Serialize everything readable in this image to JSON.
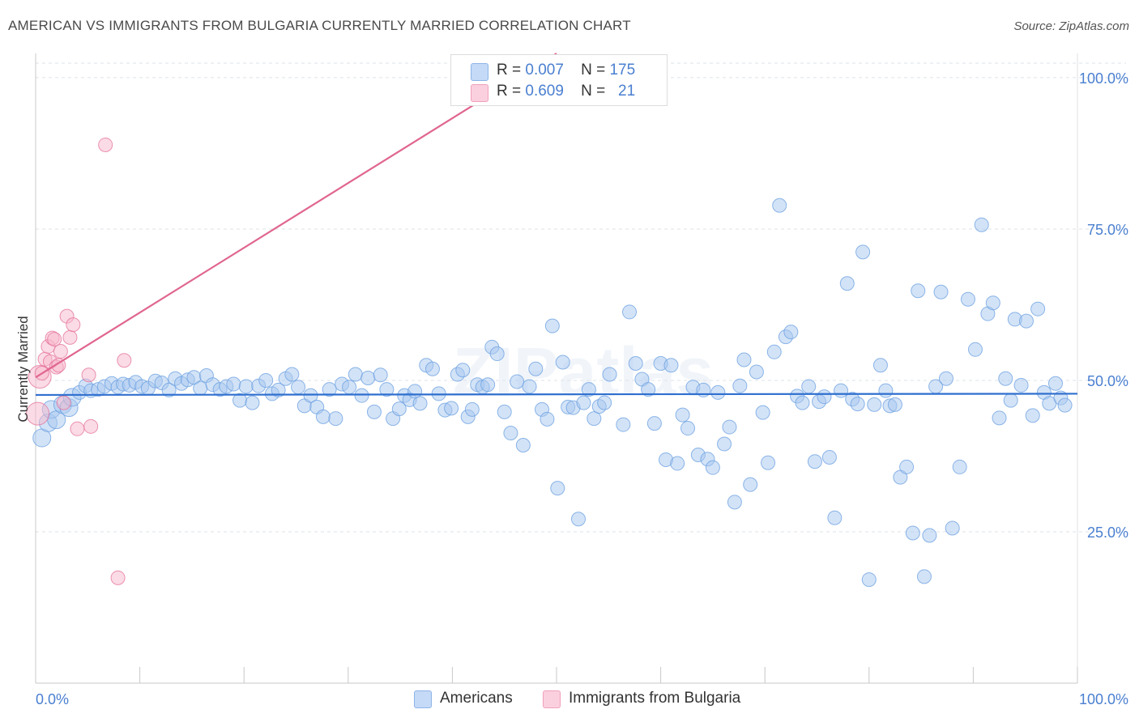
{
  "title": "AMERICAN VS IMMIGRANTS FROM BULGARIA CURRENTLY MARRIED CORRELATION CHART",
  "source": "Source: ZipAtlas.com",
  "watermark": "ZIPatlas",
  "legend": {
    "rows": [
      {
        "r_label": "R =",
        "r_value": "0.007",
        "n_label": "N =",
        "n_value": "175",
        "color": "#a8c8f0"
      },
      {
        "r_label": "R =",
        "r_value": "0.609",
        "n_label": "N =",
        "n_value": "21",
        "color": "#f7b8cc"
      }
    ]
  },
  "bottom_legend": [
    {
      "label": "Americans",
      "color": "#a8c8f0"
    },
    {
      "label": "Immigrants from Bulgaria",
      "color": "#f7b8cc"
    }
  ],
  "chart_data": {
    "type": "scatter",
    "title": "AMERICAN VS IMMIGRANTS FROM BULGARIA CURRENTLY MARRIED CORRELATION CHART",
    "xlabel": "",
    "ylabel": "Currently Married",
    "xlim": [
      0,
      100
    ],
    "ylim": [
      0,
      104
    ],
    "x_tick_labels": [
      "0.0%",
      "100.0%"
    ],
    "y_ticks": [
      25,
      50,
      75,
      100
    ],
    "y_tick_labels": [
      "25.0%",
      "50.0%",
      "75.0%",
      "100.0%"
    ],
    "grid": true,
    "legend_position": "top-center",
    "series": [
      {
        "name": "Americans",
        "color": "#6a9fe0",
        "fill": "#a8c8f0",
        "trend": {
          "x": [
            0,
            100
          ],
          "y": [
            47.6,
            47.8
          ]
        },
        "points": [
          [
            0.6,
            40.5
          ],
          [
            1.2,
            43.0
          ],
          [
            1.5,
            45.2
          ],
          [
            2.0,
            43.5
          ],
          [
            2.6,
            46.0
          ],
          [
            3.2,
            45.5
          ],
          [
            3.5,
            47.2
          ],
          [
            4.2,
            48.0
          ],
          [
            4.8,
            49.1
          ],
          [
            5.3,
            48.3
          ],
          [
            6.0,
            48.5
          ],
          [
            6.6,
            49.0
          ],
          [
            7.3,
            49.5
          ],
          [
            7.9,
            48.9
          ],
          [
            8.4,
            49.4
          ],
          [
            9.0,
            49.2
          ],
          [
            9.6,
            49.7
          ],
          [
            10.2,
            49.0
          ],
          [
            10.8,
            48.7
          ],
          [
            11.5,
            49.9
          ],
          [
            12.1,
            49.6
          ],
          [
            12.8,
            48.4
          ],
          [
            13.4,
            50.3
          ],
          [
            14.0,
            49.5
          ],
          [
            14.6,
            50.1
          ],
          [
            15.2,
            50.5
          ],
          [
            15.8,
            48.7
          ],
          [
            16.4,
            50.8
          ],
          [
            17.0,
            49.3
          ],
          [
            17.7,
            48.5
          ],
          [
            18.3,
            49.0
          ],
          [
            19.0,
            49.4
          ],
          [
            19.6,
            46.7
          ],
          [
            20.2,
            49.0
          ],
          [
            20.8,
            46.3
          ],
          [
            21.4,
            49.1
          ],
          [
            22.1,
            50.0
          ],
          [
            22.7,
            47.8
          ],
          [
            23.3,
            48.4
          ],
          [
            24.0,
            50.3
          ],
          [
            24.6,
            51.0
          ],
          [
            25.2,
            48.9
          ],
          [
            25.8,
            45.8
          ],
          [
            26.4,
            47.5
          ],
          [
            27.0,
            45.6
          ],
          [
            27.6,
            44.0
          ],
          [
            28.2,
            48.5
          ],
          [
            28.8,
            43.7
          ],
          [
            29.4,
            49.4
          ],
          [
            30.1,
            48.9
          ],
          [
            30.7,
            51.0
          ],
          [
            31.3,
            47.5
          ],
          [
            31.9,
            50.4
          ],
          [
            32.5,
            44.8
          ],
          [
            33.1,
            50.9
          ],
          [
            33.7,
            48.5
          ],
          [
            34.3,
            43.7
          ],
          [
            34.9,
            45.3
          ],
          [
            35.4,
            47.5
          ],
          [
            35.9,
            46.8
          ],
          [
            36.4,
            48.2
          ],
          [
            36.9,
            46.2
          ],
          [
            37.5,
            52.5
          ],
          [
            38.1,
            51.9
          ],
          [
            38.7,
            47.8
          ],
          [
            39.3,
            45.1
          ],
          [
            39.9,
            45.4
          ],
          [
            40.5,
            51.0
          ],
          [
            41.0,
            51.7
          ],
          [
            41.5,
            44.0
          ],
          [
            41.9,
            45.2
          ],
          [
            42.4,
            49.3
          ],
          [
            42.9,
            48.9
          ],
          [
            43.4,
            49.3
          ],
          [
            43.8,
            55.5
          ],
          [
            44.3,
            54.4
          ],
          [
            45.0,
            44.8
          ],
          [
            45.6,
            41.3
          ],
          [
            46.2,
            49.8
          ],
          [
            46.8,
            39.3
          ],
          [
            47.4,
            49.0
          ],
          [
            48.0,
            51.9
          ],
          [
            48.6,
            45.2
          ],
          [
            49.1,
            43.6
          ],
          [
            49.6,
            59.0
          ],
          [
            50.1,
            32.2
          ],
          [
            50.6,
            53.0
          ],
          [
            51.1,
            45.6
          ],
          [
            51.6,
            45.5
          ],
          [
            52.1,
            27.1
          ],
          [
            52.6,
            46.3
          ],
          [
            53.1,
            48.5
          ],
          [
            53.6,
            43.7
          ],
          [
            54.1,
            45.7
          ],
          [
            54.6,
            46.3
          ],
          [
            55.1,
            51.0
          ],
          [
            56.4,
            42.7
          ],
          [
            57.0,
            61.3
          ],
          [
            57.6,
            52.8
          ],
          [
            58.2,
            50.2
          ],
          [
            58.8,
            48.5
          ],
          [
            59.4,
            42.9
          ],
          [
            60.0,
            52.8
          ],
          [
            60.5,
            36.9
          ],
          [
            61.0,
            52.5
          ],
          [
            61.6,
            36.3
          ],
          [
            62.1,
            44.3
          ],
          [
            62.6,
            42.1
          ],
          [
            63.1,
            48.9
          ],
          [
            63.6,
            37.7
          ],
          [
            64.1,
            48.4
          ],
          [
            64.5,
            37.0
          ],
          [
            65.0,
            35.6
          ],
          [
            65.5,
            48.0
          ],
          [
            66.1,
            39.5
          ],
          [
            66.6,
            42.3
          ],
          [
            67.1,
            29.9
          ],
          [
            67.6,
            49.1
          ],
          [
            68.0,
            53.4
          ],
          [
            68.6,
            32.8
          ],
          [
            69.2,
            51.4
          ],
          [
            69.8,
            44.7
          ],
          [
            70.3,
            36.4
          ],
          [
            70.9,
            54.7
          ],
          [
            71.4,
            78.9
          ],
          [
            72.0,
            57.2
          ],
          [
            72.5,
            58.0
          ],
          [
            73.1,
            47.4
          ],
          [
            73.6,
            46.3
          ],
          [
            74.2,
            49.0
          ],
          [
            74.8,
            36.6
          ],
          [
            75.2,
            46.5
          ],
          [
            75.7,
            47.3
          ],
          [
            76.2,
            37.3
          ],
          [
            76.7,
            27.3
          ],
          [
            77.3,
            48.3
          ],
          [
            77.9,
            66.0
          ],
          [
            78.4,
            46.9
          ],
          [
            78.9,
            46.1
          ],
          [
            79.4,
            71.2
          ],
          [
            80.0,
            17.1
          ],
          [
            80.5,
            46.0
          ],
          [
            81.1,
            52.5
          ],
          [
            81.6,
            48.3
          ],
          [
            82.0,
            45.8
          ],
          [
            82.5,
            46.0
          ],
          [
            83.0,
            34.0
          ],
          [
            83.6,
            35.7
          ],
          [
            84.2,
            24.8
          ],
          [
            84.7,
            64.8
          ],
          [
            85.3,
            17.6
          ],
          [
            85.8,
            24.4
          ],
          [
            86.4,
            49.0
          ],
          [
            86.9,
            64.6
          ],
          [
            87.4,
            50.3
          ],
          [
            88.0,
            25.6
          ],
          [
            88.7,
            35.7
          ],
          [
            89.5,
            63.4
          ],
          [
            90.2,
            55.1
          ],
          [
            90.8,
            75.7
          ],
          [
            91.4,
            61.0
          ],
          [
            91.9,
            62.8
          ],
          [
            92.5,
            43.8
          ],
          [
            93.1,
            50.3
          ],
          [
            93.6,
            46.7
          ],
          [
            94.0,
            60.1
          ],
          [
            94.6,
            49.2
          ],
          [
            95.1,
            59.8
          ],
          [
            95.7,
            44.2
          ],
          [
            96.2,
            61.8
          ],
          [
            96.8,
            48.0
          ],
          [
            97.3,
            46.2
          ],
          [
            97.9,
            49.5
          ],
          [
            98.4,
            47.1
          ],
          [
            98.8,
            45.9
          ]
        ]
      },
      {
        "name": "Immigrants from Bulgaria",
        "color": "#e4709a",
        "fill": "#f7b8cc",
        "trend": {
          "x": [
            0,
            50
          ],
          "y": [
            50.5,
            104
          ]
        },
        "points": [
          [
            0.2,
            44.5
          ],
          [
            0.4,
            50.6
          ],
          [
            0.6,
            51.2
          ],
          [
            0.9,
            53.5
          ],
          [
            1.2,
            55.6
          ],
          [
            1.4,
            53.1
          ],
          [
            1.6,
            57.0
          ],
          [
            1.8,
            56.8
          ],
          [
            2.0,
            52.2
          ],
          [
            2.2,
            52.5
          ],
          [
            2.4,
            54.8
          ],
          [
            2.7,
            46.3
          ],
          [
            3.0,
            60.6
          ],
          [
            3.3,
            57.1
          ],
          [
            3.6,
            59.2
          ],
          [
            4.0,
            42.0
          ],
          [
            5.1,
            50.9
          ],
          [
            5.3,
            42.4
          ],
          [
            6.7,
            88.9
          ],
          [
            7.9,
            17.4
          ],
          [
            8.5,
            53.3
          ]
        ]
      }
    ]
  }
}
